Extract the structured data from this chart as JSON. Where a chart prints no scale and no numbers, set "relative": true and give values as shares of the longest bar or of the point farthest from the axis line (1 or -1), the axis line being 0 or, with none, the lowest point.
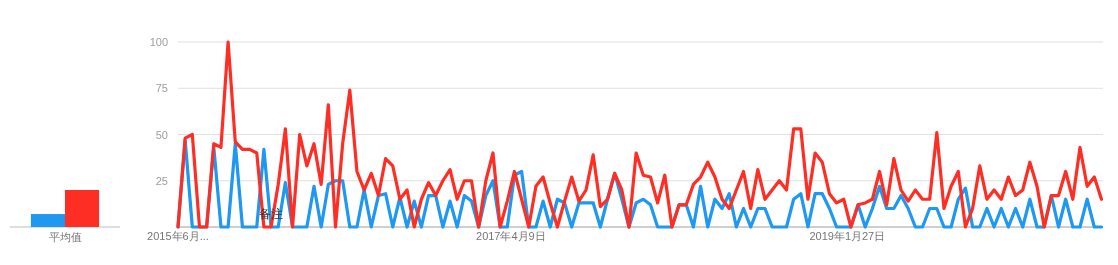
{
  "chart_data": [
    {
      "type": "bar",
      "relative": true,
      "categories": [
        "平均值"
      ],
      "series": [
        {
          "color": "#1e98f0",
          "values": [
            0.35
          ]
        },
        {
          "color": "#ff2e25",
          "values": [
            1
          ]
        }
      ]
    },
    {
      "type": "line",
      "ylim": [
        0,
        100
      ],
      "yticks": [
        25,
        50,
        75,
        100
      ],
      "grid": "y",
      "marker": "none",
      "line_style": "solid",
      "xlim": [
        "2015-06-28",
        "2020-06-10"
      ],
      "xticks": [
        {
          "value": "2015-06-28",
          "label": "2015年6月..."
        },
        {
          "value": "2017-04-09",
          "label": "2017年4月9日"
        },
        {
          "value": "2019-01-27",
          "label": "2019年1月27日"
        }
      ],
      "annotations": [
        {
          "text": "备注",
          "x": "2015-12-27",
          "y": 6
        }
      ],
      "x": [
        "2015-06-28",
        "2015-07-12",
        "2015-07-26",
        "2015-08-09",
        "2015-08-23",
        "2015-09-06",
        "2015-09-20",
        "2015-10-04",
        "2015-10-18",
        "2015-11-01",
        "2015-11-15",
        "2015-11-29",
        "2015-12-13",
        "2015-12-27",
        "2016-01-10",
        "2016-01-24",
        "2016-02-07",
        "2016-02-21",
        "2016-03-06",
        "2016-03-20",
        "2016-04-03",
        "2016-04-17",
        "2016-05-01",
        "2016-05-15",
        "2016-05-29",
        "2016-06-12",
        "2016-06-26",
        "2016-07-10",
        "2016-07-24",
        "2016-08-07",
        "2016-08-21",
        "2016-09-04",
        "2016-09-18",
        "2016-10-02",
        "2016-10-16",
        "2016-10-30",
        "2016-11-13",
        "2016-11-27",
        "2016-12-11",
        "2016-12-25",
        "2017-01-08",
        "2017-01-22",
        "2017-02-05",
        "2017-02-19",
        "2017-03-05",
        "2017-03-19",
        "2017-04-02",
        "2017-04-16",
        "2017-04-30",
        "2017-05-14",
        "2017-05-28",
        "2017-06-11",
        "2017-06-25",
        "2017-07-09",
        "2017-07-23",
        "2017-08-06",
        "2017-08-20",
        "2017-09-03",
        "2017-09-17",
        "2017-10-01",
        "2017-10-15",
        "2017-10-29",
        "2017-11-12",
        "2017-11-26",
        "2017-12-10",
        "2017-12-24",
        "2018-01-07",
        "2018-01-21",
        "2018-02-04",
        "2018-02-18",
        "2018-03-04",
        "2018-03-18",
        "2018-04-01",
        "2018-04-15",
        "2018-04-29",
        "2018-05-13",
        "2018-05-27",
        "2018-06-10",
        "2018-06-24",
        "2018-07-08",
        "2018-07-22",
        "2018-08-05",
        "2018-08-19",
        "2018-09-02",
        "2018-09-16",
        "2018-09-30",
        "2018-10-14",
        "2018-10-28",
        "2018-11-11",
        "2018-11-25",
        "2018-12-09",
        "2018-12-23",
        "2019-01-06",
        "2019-01-20",
        "2019-02-03",
        "2019-02-17",
        "2019-03-03",
        "2019-03-17",
        "2019-03-31",
        "2019-04-14",
        "2019-04-28",
        "2019-05-12",
        "2019-05-26",
        "2019-06-09",
        "2019-06-23",
        "2019-07-07",
        "2019-07-21",
        "2019-08-04",
        "2019-08-18",
        "2019-09-01",
        "2019-09-15",
        "2019-09-29",
        "2019-10-13",
        "2019-10-27",
        "2019-11-10",
        "2019-11-24",
        "2019-12-08",
        "2019-12-22",
        "2020-01-05",
        "2020-01-19",
        "2020-02-02",
        "2020-02-16",
        "2020-03-01",
        "2020-03-15",
        "2020-03-29",
        "2020-04-12",
        "2020-04-26",
        "2020-05-10",
        "2020-05-24",
        "2020-06-07"
      ],
      "series": [
        {
          "color": "#1e98f0",
          "values": [
            0,
            47,
            0,
            0,
            0,
            43,
            0,
            0,
            45,
            0,
            0,
            0,
            42,
            0,
            0,
            24,
            0,
            0,
            0,
            22,
            0,
            23,
            25,
            25,
            0,
            0,
            20,
            0,
            17,
            18,
            0,
            16,
            0,
            14,
            0,
            17,
            17,
            0,
            14,
            0,
            17,
            14,
            0,
            17,
            25,
            0,
            0,
            28,
            30,
            0,
            0,
            14,
            0,
            15,
            13,
            0,
            13,
            13,
            13,
            0,
            15,
            29,
            15,
            0,
            13,
            15,
            12,
            0,
            0,
            0,
            12,
            12,
            0,
            22,
            0,
            15,
            10,
            18,
            0,
            10,
            0,
            10,
            10,
            0,
            0,
            0,
            15,
            18,
            0,
            18,
            18,
            10,
            0,
            0,
            0,
            12,
            0,
            10,
            22,
            10,
            10,
            17,
            10,
            0,
            0,
            10,
            10,
            0,
            0,
            15,
            21,
            0,
            0,
            10,
            0,
            10,
            0,
            10,
            0,
            15,
            0,
            0,
            17,
            0,
            15,
            0,
            0,
            15,
            0,
            0
          ]
        },
        {
          "color": "#ff2e25",
          "values": [
            0,
            48,
            50,
            0,
            0,
            45,
            43,
            100,
            46,
            42,
            42,
            40,
            0,
            0,
            23,
            53,
            0,
            50,
            33,
            45,
            23,
            66,
            0,
            45,
            74,
            30,
            20,
            29,
            17,
            37,
            33,
            15,
            20,
            0,
            15,
            24,
            17,
            25,
            31,
            15,
            25,
            25,
            0,
            25,
            40,
            0,
            14,
            30,
            15,
            0,
            22,
            27,
            13,
            0,
            14,
            27,
            14,
            20,
            39,
            11,
            15,
            29,
            20,
            0,
            40,
            28,
            27,
            13,
            28,
            0,
            12,
            12,
            23,
            27,
            35,
            27,
            15,
            10,
            20,
            30,
            10,
            31,
            15,
            20,
            25,
            20,
            53,
            53,
            15,
            40,
            35,
            18,
            13,
            15,
            0,
            12,
            13,
            15,
            30,
            12,
            37,
            20,
            14,
            20,
            15,
            15,
            51,
            10,
            22,
            30,
            0,
            10,
            33,
            15,
            20,
            15,
            27,
            17,
            20,
            35,
            22,
            0,
            17,
            17,
            30,
            15,
            43,
            22,
            27,
            15
          ]
        }
      ]
    }
  ]
}
